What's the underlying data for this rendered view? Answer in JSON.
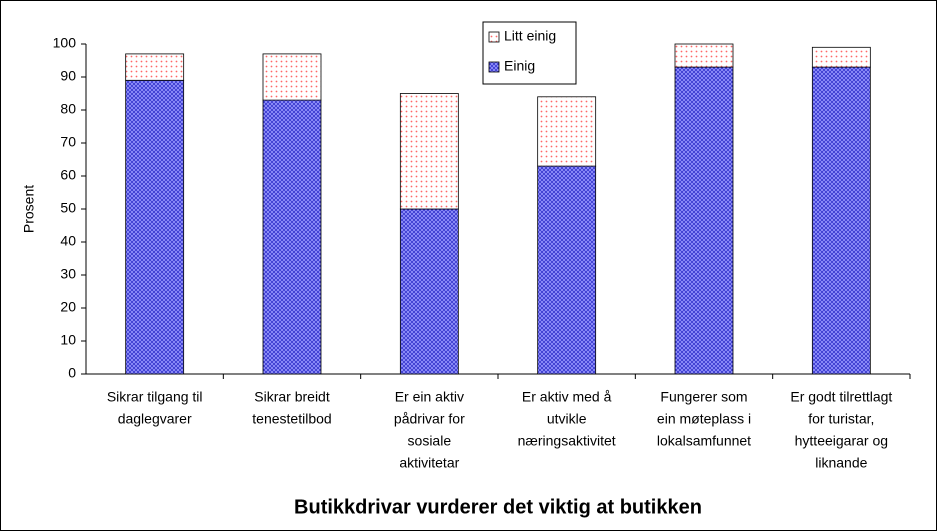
{
  "chart_data": {
    "type": "stacked_bar",
    "title": "Butikkdrivar vurderer det viktig at butikken",
    "ylabel": "Prosent",
    "categories": [
      [
        "Sikrar tilgang til",
        "daglegvarer"
      ],
      [
        "Sikrar breidt",
        "tenestetilbod"
      ],
      [
        "Er ein aktiv",
        "pådrivar for",
        "sosiale",
        "aktivitetar"
      ],
      [
        "Er aktiv med å",
        "utvikle",
        "næringsaktivitet"
      ],
      [
        "Fungerer som",
        "ein møteplass i",
        "lokalsamfunnet"
      ],
      [
        "Er godt tilrettlagt",
        "for turistar,",
        "hytteeigarar og",
        "liknande"
      ]
    ],
    "series": [
      {
        "name": "Einig",
        "color": "#3333cc",
        "values": [
          89,
          83,
          50,
          63,
          93,
          93
        ]
      },
      {
        "name": "Litt einig",
        "color": "#ffcccc",
        "values": [
          8,
          14,
          35,
          21,
          7,
          6
        ]
      }
    ],
    "ylim": [
      0,
      100
    ],
    "yticks": [
      0,
      10,
      20,
      30,
      40,
      50,
      60,
      70,
      80,
      90,
      100
    ],
    "legend": "top"
  }
}
